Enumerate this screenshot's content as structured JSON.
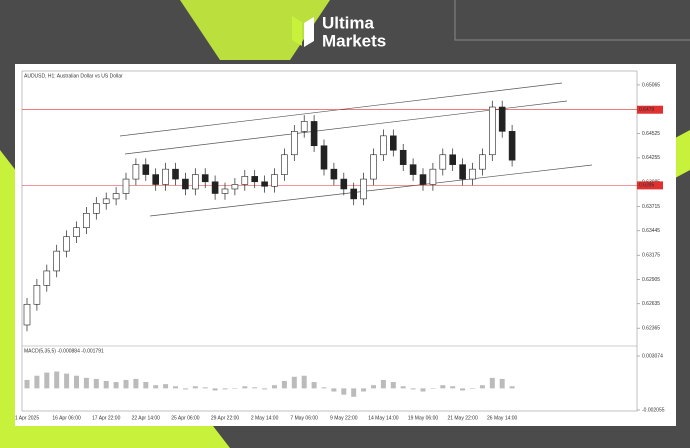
{
  "brand": {
    "line1": "Ultima",
    "line2": "Markets"
  },
  "chart_data": {
    "type": "candlestick",
    "title": "AUDUSD, H1:  Australian Dollar vs US Dollar",
    "categories": [
      "1 Apr 2025",
      null,
      null,
      null,
      "16 Apr 06:00",
      null,
      null,
      null,
      "17 Apr 22:00",
      null,
      null,
      null,
      "22 Apr 14:00",
      null,
      null,
      null,
      "25 Apr 06:00",
      null,
      null,
      null,
      "29 Apr 22:00",
      null,
      null,
      null,
      "2 May 14:00",
      null,
      null,
      null,
      "7 May 06:00",
      null,
      null,
      null,
      "9 May 22:00",
      null,
      null,
      null,
      "14 May 14:00",
      null,
      null,
      null,
      "19 May 06:00",
      null,
      null,
      null,
      "21 May 22:00",
      null,
      null,
      null,
      "26 May 14:00",
      null
    ],
    "open": [
      0.624,
      0.6263,
      0.6284,
      0.63,
      0.6322,
      0.6338,
      0.6348,
      0.6364,
      0.6375,
      0.638,
      0.6386,
      0.6402,
      0.6418,
      0.6407,
      0.6396,
      0.6413,
      0.6402,
      0.6391,
      0.6407,
      0.6399,
      0.6386,
      0.6391,
      0.6396,
      0.6405,
      0.6399,
      0.6394,
      0.6407,
      0.6429,
      0.6455,
      0.6466,
      0.6439,
      0.6413,
      0.6402,
      0.6391,
      0.638,
      0.6402,
      0.6429,
      0.645,
      0.6434,
      0.6418,
      0.6407,
      0.6396,
      0.6413,
      0.6429,
      0.6418,
      0.6402,
      0.6413,
      0.6429,
      0.6482,
      0.6455
    ],
    "high": [
      0.627,
      0.6291,
      0.6307,
      0.6329,
      0.6345,
      0.6355,
      0.6371,
      0.6382,
      0.6387,
      0.6393,
      0.6409,
      0.6425,
      0.6425,
      0.6414,
      0.642,
      0.642,
      0.6409,
      0.6414,
      0.6414,
      0.6406,
      0.6398,
      0.6403,
      0.6412,
      0.6412,
      0.6406,
      0.6414,
      0.6436,
      0.6462,
      0.6473,
      0.6473,
      0.6446,
      0.642,
      0.6409,
      0.6398,
      0.6409,
      0.6436,
      0.6457,
      0.6457,
      0.6441,
      0.6425,
      0.6414,
      0.642,
      0.6436,
      0.6436,
      0.6425,
      0.642,
      0.6436,
      0.6489,
      0.6489,
      0.6462
    ],
    "low": [
      0.6233,
      0.6256,
      0.6277,
      0.6293,
      0.6315,
      0.6331,
      0.6341,
      0.6357,
      0.6368,
      0.6373,
      0.6379,
      0.6395,
      0.64,
      0.6389,
      0.6389,
      0.6395,
      0.6384,
      0.6384,
      0.6392,
      0.6379,
      0.6379,
      0.6384,
      0.6389,
      0.6392,
      0.6387,
      0.6387,
      0.64,
      0.6422,
      0.6448,
      0.6432,
      0.6406,
      0.6395,
      0.6384,
      0.6373,
      0.6373,
      0.6395,
      0.6422,
      0.6427,
      0.6411,
      0.64,
      0.6389,
      0.6389,
      0.6406,
      0.6411,
      0.6395,
      0.6395,
      0.6406,
      0.6422,
      0.6448,
      0.6416
    ],
    "close": [
      0.6263,
      0.6284,
      0.63,
      0.6322,
      0.6338,
      0.6348,
      0.6364,
      0.6375,
      0.638,
      0.6386,
      0.6402,
      0.6418,
      0.6407,
      0.6396,
      0.6413,
      0.6402,
      0.6391,
      0.6407,
      0.6399,
      0.6386,
      0.6391,
      0.6396,
      0.6405,
      0.6399,
      0.6394,
      0.6407,
      0.6429,
      0.6455,
      0.6466,
      0.6439,
      0.6413,
      0.6402,
      0.6391,
      0.638,
      0.6402,
      0.6429,
      0.645,
      0.6434,
      0.6418,
      0.6407,
      0.6396,
      0.6413,
      0.6429,
      0.6418,
      0.6402,
      0.6413,
      0.6429,
      0.6482,
      0.6455,
      0.6423
    ],
    "up_color": "#ffffff",
    "down_color": "#222222",
    "ylim": [
      0.622,
      0.6512
    ],
    "yticks": [
      0.65065,
      0.64795,
      0.64525,
      0.64255,
      0.63985,
      0.63715,
      0.63445,
      0.63175,
      0.62905,
      0.62635,
      0.62365
    ],
    "levels": [
      0.6479,
      0.6395
    ],
    "level_color": "#e03030",
    "indicator": {
      "type": "bar",
      "title": "MACD(5,35,5) -0.000884 -0.001791",
      "color": "#bbbbbb",
      "values": [
        0.0008,
        0.0012,
        0.0015,
        0.0016,
        0.0014,
        0.0012,
        0.001,
        0.0009,
        0.0007,
        0.0006,
        0.0008,
        0.0009,
        0.0006,
        0.0003,
        0.0004,
        0.0002,
        -0.0001,
        0.0002,
        0.0001,
        -0.0002,
        -0.0001,
        0.0,
        0.0002,
        0.0001,
        -0.0001,
        0.0003,
        0.0007,
        0.0011,
        0.0012,
        0.0006,
        0.0001,
        -0.0003,
        -0.0006,
        -0.0008,
        -0.0003,
        0.0003,
        0.0008,
        0.0006,
        0.0002,
        -0.0001,
        -0.0003,
        0.0,
        0.0003,
        0.0002,
        -0.0002,
        0.0,
        0.0003,
        0.001,
        0.0009,
        0.0002
      ],
      "ylim": [
        -0.002055,
        0.003074
      ],
      "yticks": [
        0.003074,
        -0.002055
      ]
    }
  }
}
